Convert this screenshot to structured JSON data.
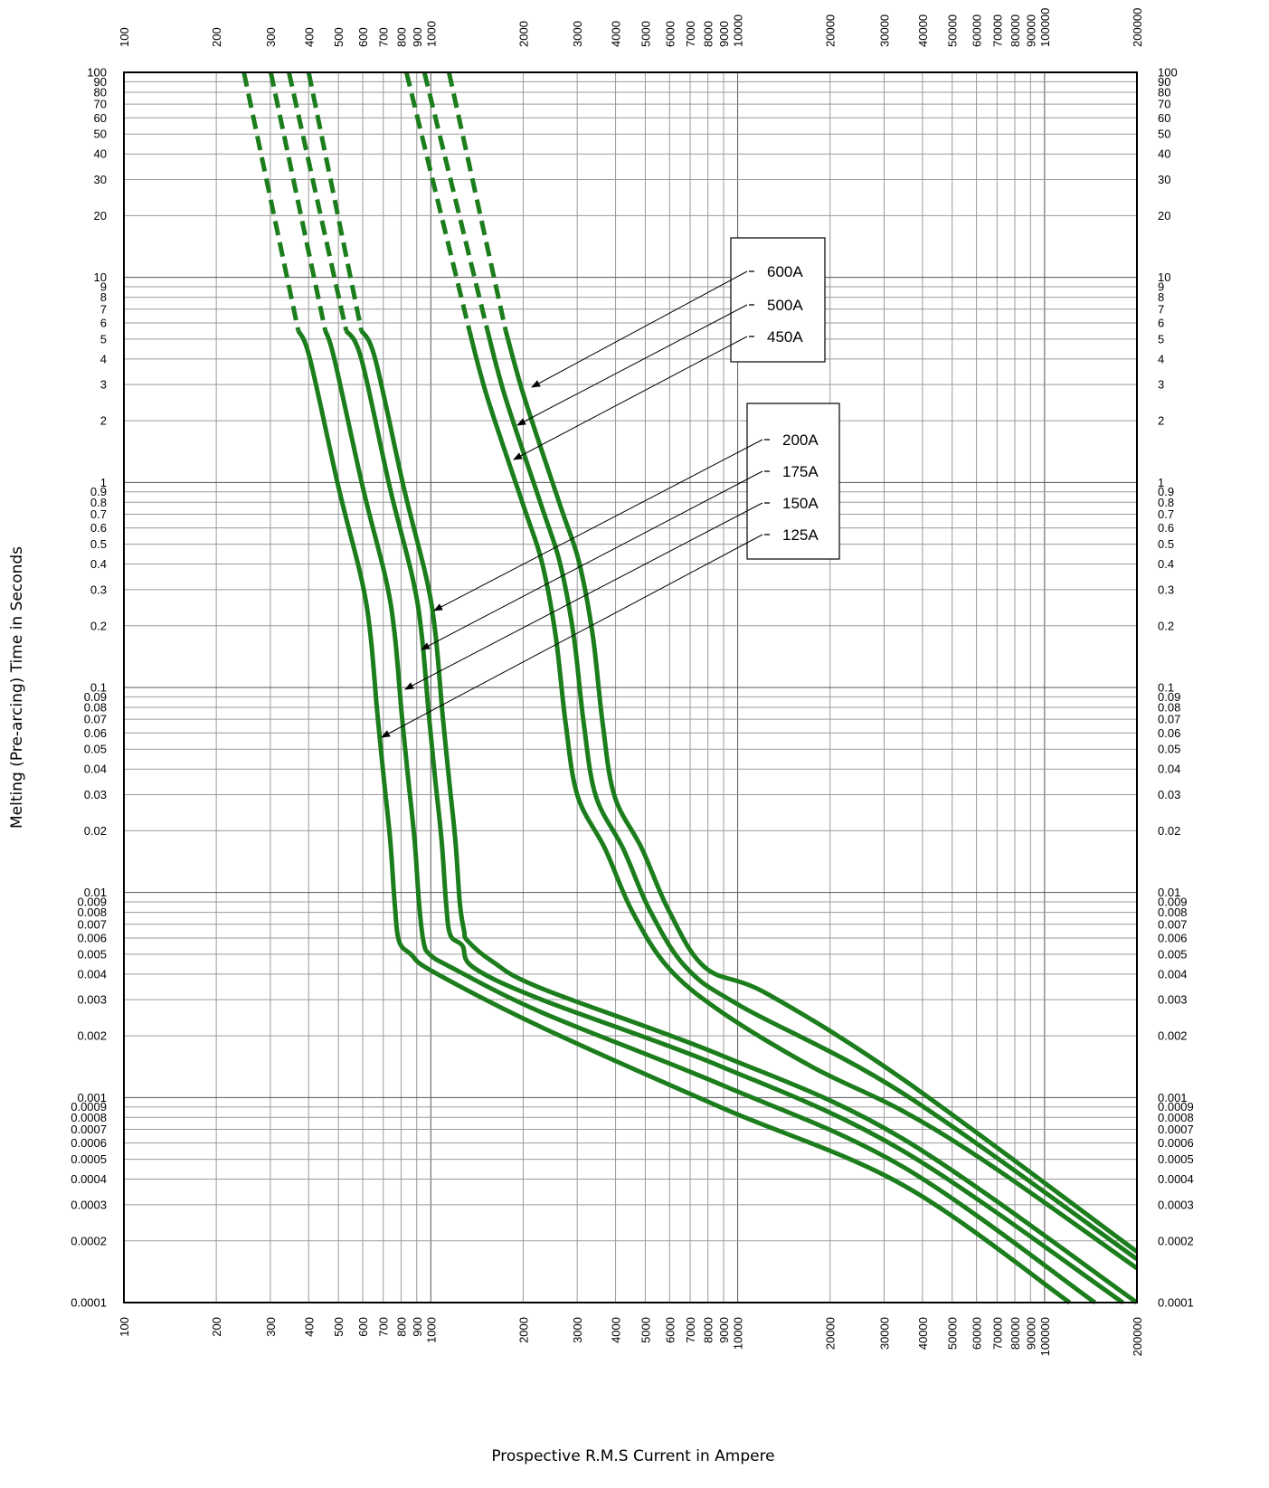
{
  "chart_data": {
    "type": "line",
    "x_label": "Prospective R.M.S Current in Ampere",
    "y_label": "Melting (Pre-arcing) Time in Seconds",
    "xscale": "log",
    "yscale": "log",
    "grid": true,
    "xlim": [
      100,
      200000
    ],
    "ylim": [
      0.0001,
      100
    ],
    "xticks": [
      100,
      200,
      300,
      400,
      500,
      600,
      700,
      800,
      900,
      1000,
      2000,
      3000,
      4000,
      5000,
      6000,
      7000,
      8000,
      9000,
      10000,
      20000,
      30000,
      40000,
      50000,
      60000,
      70000,
      80000,
      90000,
      100000,
      200000
    ],
    "yticks": [
      0.0001,
      0.0002,
      0.0003,
      0.0004,
      0.0005,
      0.0006,
      0.0007,
      0.0008,
      0.0009,
      0.001,
      0.002,
      0.003,
      0.004,
      0.005,
      0.006,
      0.007,
      0.008,
      0.009,
      0.01,
      0.02,
      0.03,
      0.04,
      0.05,
      0.06,
      0.07,
      0.08,
      0.09,
      0.1,
      0.2,
      0.3,
      0.4,
      0.5,
      0.6,
      0.7,
      0.8,
      0.9,
      1,
      2,
      3,
      4,
      5,
      6,
      7,
      8,
      9,
      10,
      20,
      30,
      40,
      50,
      60,
      70,
      80,
      90,
      100
    ],
    "series": [
      {
        "name": "125A",
        "color": "#1b7d1b",
        "dashed_to_index": 1,
        "x": [
          246,
          370,
          404,
          501,
          594,
          635,
          670,
          703,
          738,
          763,
          788,
          861,
          1020,
          2300,
          8900,
          34500,
          120800
        ],
        "values": [
          100,
          5.5,
          4,
          0.94,
          0.34,
          0.184,
          0.074,
          0.036,
          0.0178,
          0.0088,
          0.0058,
          0.005,
          0.0041,
          0.0022,
          0.00089,
          0.000375,
          0.0001
        ]
      },
      {
        "name": "150A",
        "color": "#1b7d1b",
        "dashed_to_index": 1,
        "x": [
          301,
          453,
          485,
          601,
          713,
          762,
          804,
          844,
          886,
          916,
          946,
          990,
          1170,
          2300,
          8900,
          34500,
          146000
        ],
        "values": [
          100,
          5.5,
          4,
          0.94,
          0.34,
          0.184,
          0.074,
          0.036,
          0.0178,
          0.0088,
          0.0058,
          0.005,
          0.0043,
          0.0026,
          0.00115,
          0.00046,
          0.0001
        ]
      },
      {
        "name": "175A",
        "color": "#1b7d1b",
        "dashed_to_index": 1,
        "x": [
          345,
          530,
          594,
          736,
          873,
          933,
          985,
          1033,
          1085,
          1122,
          1158,
          1268,
          1380,
          2300,
          8900,
          34500,
          180000
        ],
        "values": [
          100,
          5.5,
          4,
          0.94,
          0.34,
          0.184,
          0.074,
          0.036,
          0.0178,
          0.0088,
          0.0062,
          0.0055,
          0.0043,
          0.003,
          0.00141,
          0.00055,
          0.0001
        ]
      },
      {
        "name": "200A",
        "color": "#1b7d1b",
        "dashed_to_index": 1,
        "x": [
          400,
          594,
          659,
          817,
          968,
          1035,
          1092,
          1146,
          1203,
          1244,
          1284,
          1320,
          1590,
          2300,
          8900,
          34500,
          200000
        ],
        "values": [
          100,
          5.5,
          4,
          0.94,
          0.34,
          0.184,
          0.074,
          0.036,
          0.0178,
          0.0088,
          0.0065,
          0.0058,
          0.0046,
          0.0034,
          0.0016,
          0.00063,
          0.0001
        ]
      },
      {
        "name": "450A",
        "color": "#1b7d1b",
        "dashed_to_index": 1,
        "x": [
          833,
          1336,
          1530,
          2010,
          2300,
          2550,
          2750,
          3010,
          3700,
          4530,
          5940,
          8900,
          17500,
          34500,
          67900,
          200000
        ],
        "values": [
          100,
          5.5,
          2.58,
          0.76,
          0.41,
          0.18,
          0.067,
          0.0295,
          0.0163,
          0.0081,
          0.0043,
          0.0026,
          0.00141,
          0.00086,
          0.00046,
          0.000147
        ]
      },
      {
        "name": "500A",
        "color": "#1b7d1b",
        "dashed_to_index": 1,
        "x": [
          953,
          1530,
          1752,
          2300,
          2630,
          2920,
          3150,
          3450,
          4240,
          5190,
          6800,
          10200,
          34500,
          200000
        ],
        "values": [
          100,
          5.5,
          2.58,
          0.76,
          0.41,
          0.18,
          0.067,
          0.0295,
          0.0163,
          0.0081,
          0.0043,
          0.0028,
          0.00105,
          0.000163
        ]
      },
      {
        "name": "600A",
        "color": "#1b7d1b",
        "dashed_to_index": 1,
        "x": [
          1146,
          1754,
          2020,
          2650,
          3040,
          3370,
          3630,
          3970,
          4880,
          5980,
          7840,
          12500,
          34500,
          200000
        ],
        "values": [
          100,
          5.5,
          2.58,
          0.76,
          0.41,
          0.18,
          0.067,
          0.0295,
          0.0163,
          0.0081,
          0.0043,
          0.0032,
          0.00123,
          0.000177
        ]
      }
    ]
  }
}
